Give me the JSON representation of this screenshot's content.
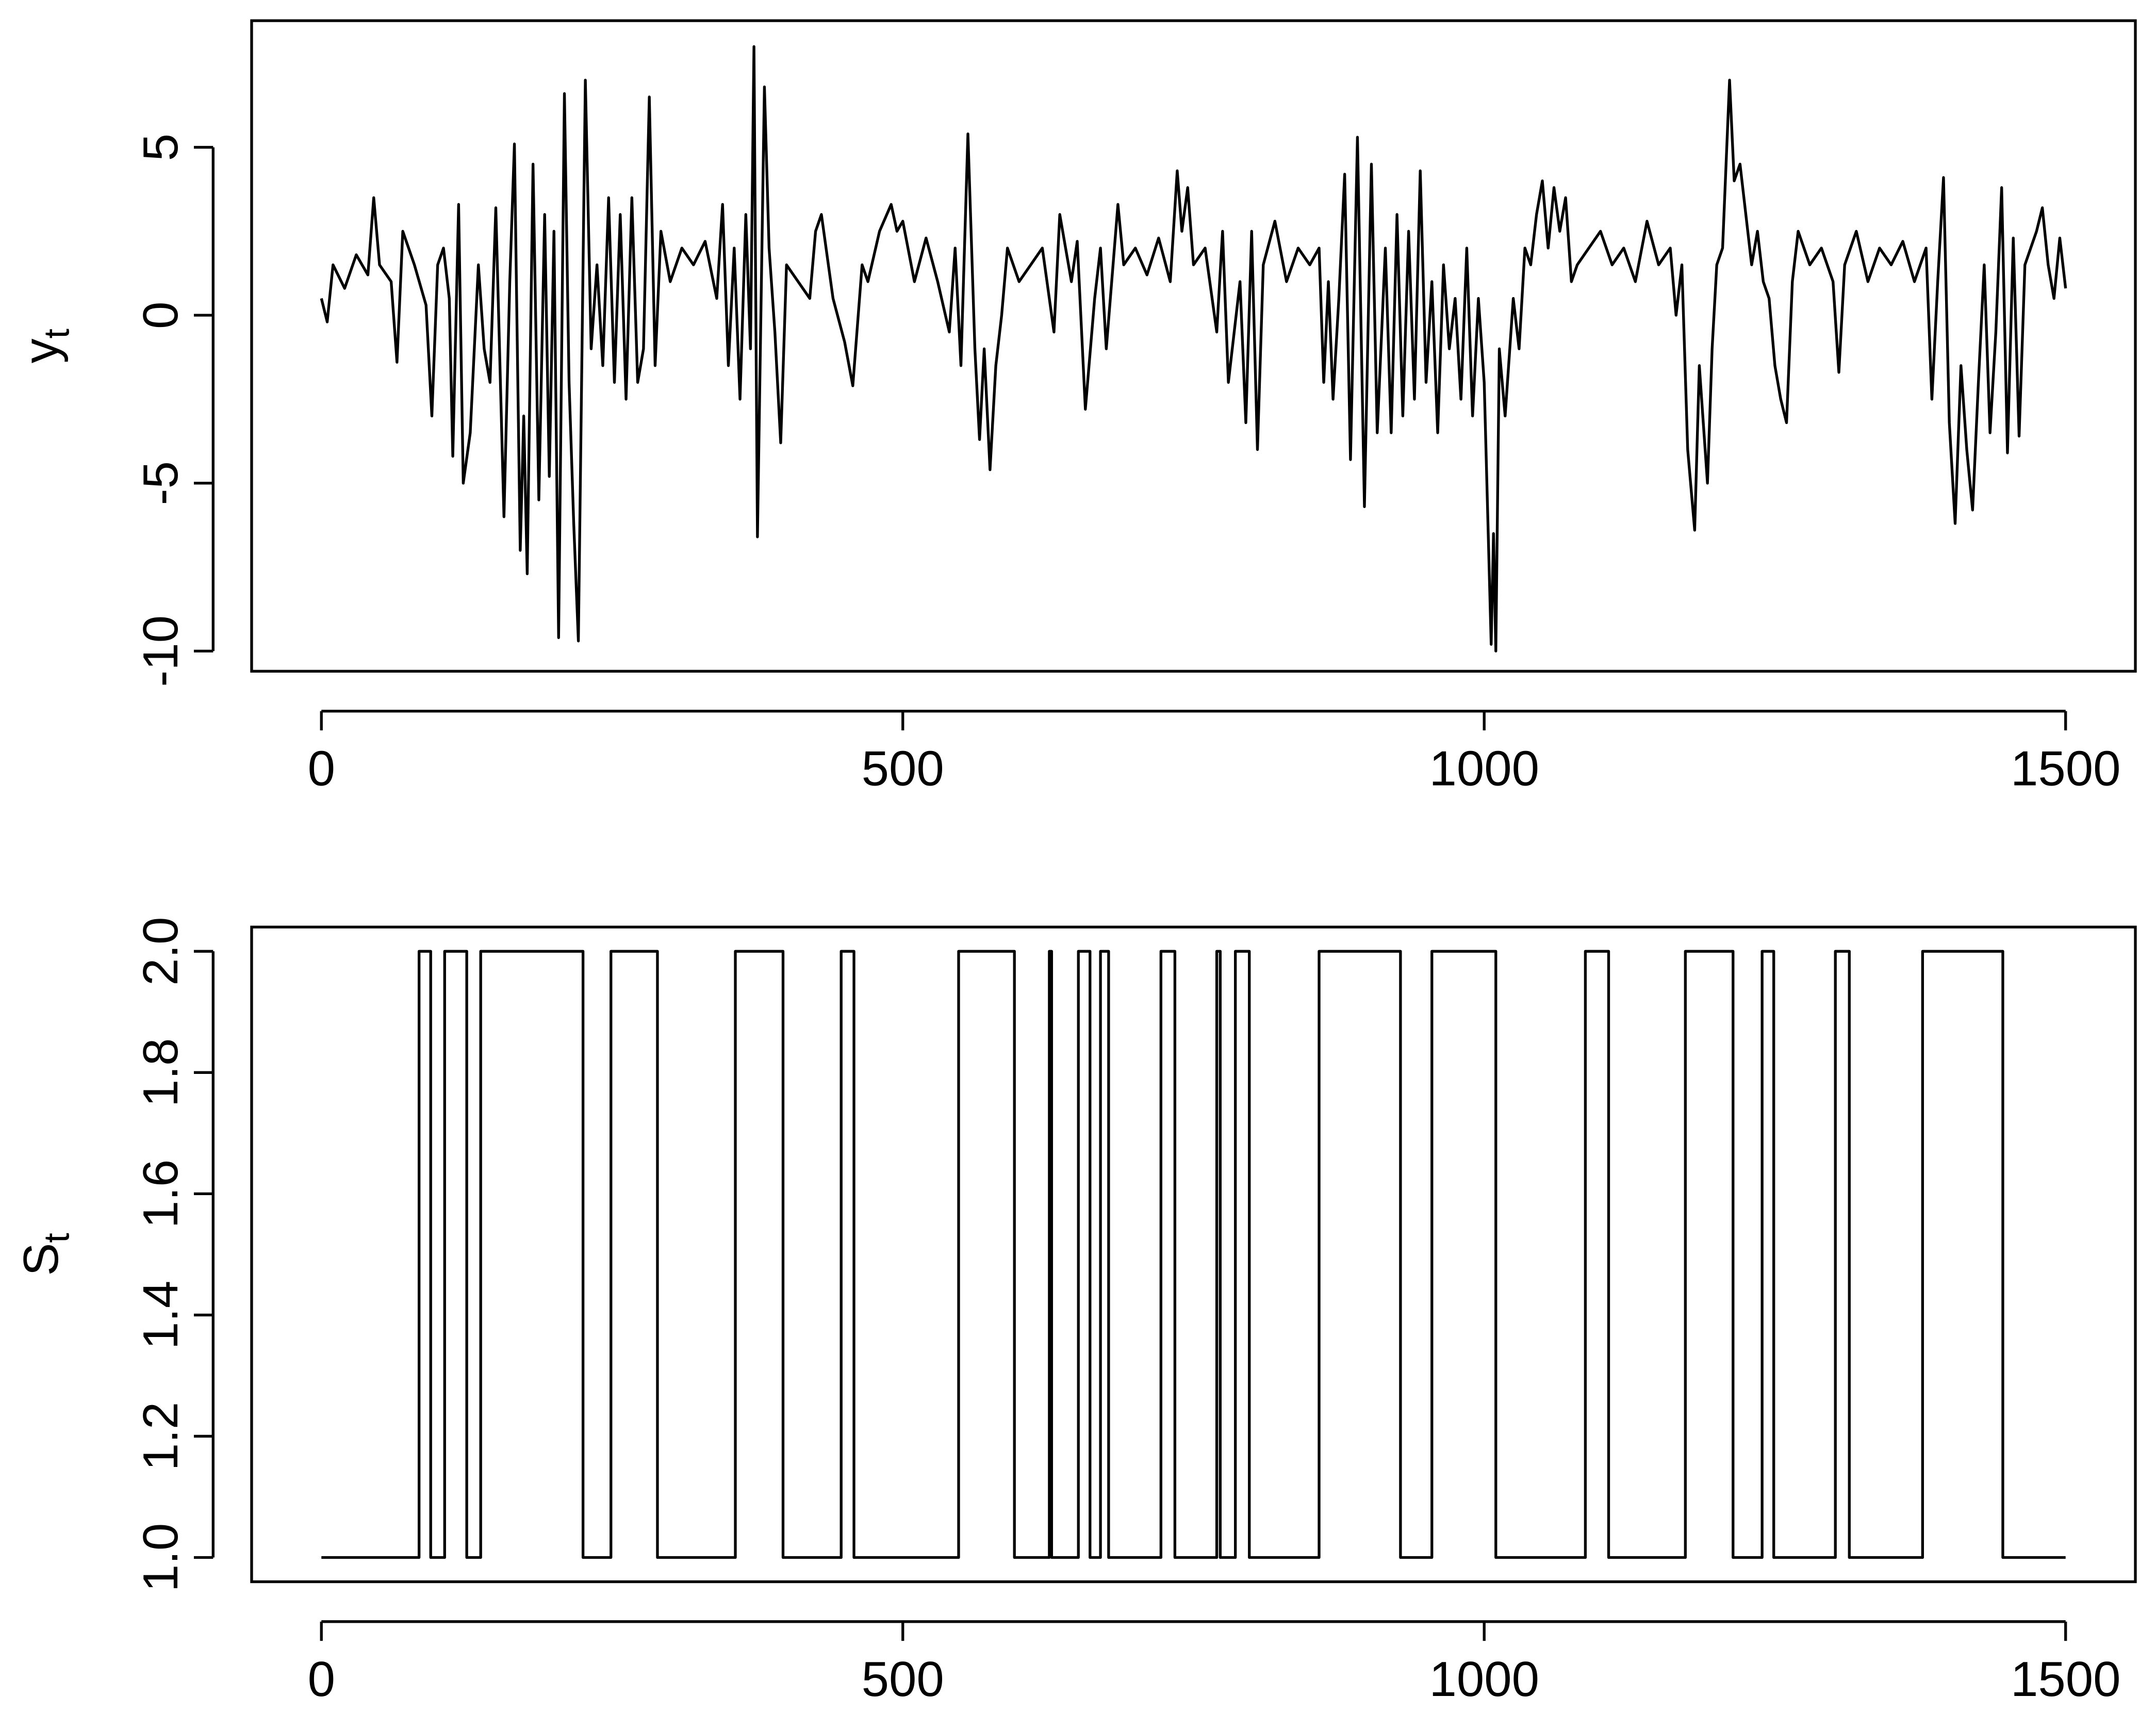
{
  "chart_data": [
    {
      "type": "line",
      "ylabel": {
        "base": "y",
        "sub": "t"
      },
      "color": "#000000",
      "x": [
        0,
        5,
        10,
        20,
        30,
        40,
        45,
        50,
        60,
        65,
        70,
        80,
        90,
        95,
        100,
        105,
        110,
        113,
        118,
        122,
        128,
        135,
        140,
        145,
        150,
        157,
        162,
        166,
        171,
        174,
        177,
        182,
        187,
        192,
        196,
        200,
        204,
        209,
        213,
        217,
        221,
        227,
        232,
        237,
        242,
        247,
        252,
        257,
        262,
        267,
        272,
        277,
        282,
        287,
        292,
        300,
        310,
        320,
        330,
        340,
        345,
        350,
        355,
        360,
        365,
        369,
        372,
        375,
        381,
        385,
        390,
        395,
        400,
        420,
        425,
        430,
        440,
        450,
        457,
        465,
        470,
        480,
        490,
        495,
        500,
        510,
        520,
        530,
        540,
        545,
        550,
        556,
        562,
        566,
        570,
        575,
        580,
        585,
        590,
        600,
        610,
        620,
        630,
        635,
        645,
        650,
        657,
        665,
        670,
        675,
        685,
        690,
        700,
        710,
        720,
        730,
        736,
        740,
        745,
        750,
        760,
        770,
        775,
        780,
        790,
        795,
        800,
        805,
        810,
        820,
        830,
        840,
        850,
        858,
        862,
        866,
        870,
        875,
        880,
        885,
        891,
        897,
        903,
        908,
        915,
        920,
        925,
        930,
        935,
        940,
        945,
        950,
        955,
        960,
        965,
        970,
        975,
        980,
        985,
        990,
        995,
        1000,
        1006,
        1008,
        1010,
        1013,
        1018,
        1025,
        1030,
        1035,
        1040,
        1045,
        1050,
        1055,
        1060,
        1065,
        1070,
        1075,
        1080,
        1090,
        1100,
        1110,
        1120,
        1130,
        1140,
        1150,
        1160,
        1165,
        1170,
        1175,
        1181,
        1185,
        1192,
        1196,
        1200,
        1205,
        1211,
        1215,
        1220,
        1225,
        1230,
        1235,
        1240,
        1245,
        1250,
        1255,
        1260,
        1265,
        1270,
        1280,
        1290,
        1300,
        1305,
        1310,
        1320,
        1330,
        1340,
        1350,
        1360,
        1370,
        1380,
        1385,
        1390,
        1395,
        1400,
        1405,
        1410,
        1415,
        1420,
        1425,
        1430,
        1435,
        1440,
        1445,
        1450,
        1455,
        1460,
        1465,
        1470,
        1475,
        1480,
        1485,
        1490,
        1495,
        1500
      ],
      "values": [
        0.5,
        -0.2,
        1.5,
        0.8,
        1.8,
        1.2,
        3.5,
        1.5,
        1.0,
        -1.4,
        2.5,
        1.5,
        0.3,
        -3.0,
        1.5,
        2.0,
        0.5,
        -4.2,
        3.3,
        -5.0,
        -3.5,
        1.5,
        -1.0,
        -2.0,
        3.2,
        -6.0,
        1.0,
        5.1,
        -7.0,
        -3.0,
        -7.7,
        4.5,
        -5.5,
        3.0,
        -4.8,
        2.5,
        -9.6,
        6.6,
        -2.0,
        -6.2,
        -9.7,
        7.0,
        -1.0,
        1.5,
        -1.5,
        3.5,
        -2.0,
        3.0,
        -2.5,
        3.5,
        -2.0,
        -1.0,
        6.5,
        -1.5,
        2.5,
        1.0,
        2.0,
        1.5,
        2.2,
        0.5,
        3.3,
        -1.5,
        2.0,
        -2.5,
        3.0,
        -1.0,
        8.0,
        -6.6,
        6.8,
        2.0,
        -0.5,
        -3.8,
        1.5,
        0.5,
        2.5,
        3.0,
        0.5,
        -0.8,
        -2.1,
        1.5,
        1.0,
        2.5,
        3.3,
        2.5,
        2.8,
        1.0,
        2.3,
        1.0,
        -0.5,
        2.0,
        -1.5,
        5.4,
        -1.0,
        -3.7,
        -1.0,
        -4.6,
        -1.5,
        0.0,
        2.0,
        1.0,
        1.5,
        2.0,
        -0.5,
        3.0,
        1.0,
        2.2,
        -2.8,
        0.5,
        2.0,
        -1.0,
        3.3,
        1.5,
        2.0,
        1.2,
        2.3,
        1.0,
        4.3,
        2.5,
        3.8,
        1.5,
        2.0,
        -0.5,
        2.5,
        -2.0,
        1.0,
        -3.2,
        2.5,
        -4.0,
        1.5,
        2.8,
        1.0,
        2.0,
        1.5,
        2.0,
        -2.0,
        1.0,
        -2.5,
        0.5,
        4.2,
        -4.3,
        5.3,
        -5.7,
        4.5,
        -3.5,
        2.0,
        -3.5,
        3.0,
        -3.0,
        2.5,
        -2.5,
        4.3,
        -2.0,
        1.0,
        -3.5,
        1.5,
        -1.0,
        0.5,
        -2.5,
        2.0,
        -3.0,
        0.5,
        -2.0,
        -9.8,
        -6.5,
        -10.0,
        -1.0,
        -3.0,
        0.5,
        -1.0,
        2.0,
        1.5,
        3.0,
        4.0,
        2.0,
        3.8,
        2.5,
        3.5,
        1.0,
        1.5,
        2.0,
        2.5,
        1.5,
        2.0,
        1.0,
        2.8,
        1.5,
        2.0,
        0.0,
        1.5,
        -4.0,
        -6.4,
        -1.5,
        -5.0,
        -1.0,
        1.5,
        2.0,
        7.0,
        4.0,
        4.5,
        3.0,
        1.5,
        2.5,
        1.0,
        0.5,
        -1.5,
        -2.5,
        -3.2,
        1.0,
        2.5,
        1.5,
        2.0,
        1.0,
        -1.7,
        1.5,
        2.5,
        1.0,
        2.0,
        1.5,
        2.2,
        1.0,
        2.0,
        -2.5,
        1.0,
        4.1,
        -3.2,
        -6.2,
        -1.5,
        -4.0,
        -5.8,
        -2.0,
        1.5,
        -3.5,
        -0.5,
        3.8,
        -4.1,
        2.3,
        -3.6,
        1.5,
        2.0,
        2.5,
        3.2,
        1.5,
        0.5,
        2.3,
        0.8
      ],
      "xlim": [
        -60,
        1560
      ],
      "xticks": [
        0,
        500,
        1000,
        1500
      ],
      "ylim": [
        -10.6,
        8.77
      ],
      "yticks": [
        -10,
        -5,
        0,
        5
      ]
    },
    {
      "type": "line",
      "step": "post",
      "ylabel": {
        "base": "S",
        "sub": "t"
      },
      "color": "#000000",
      "x": [
        0,
        84,
        94,
        106,
        125,
        137,
        225,
        249,
        289,
        356,
        397,
        447,
        458,
        548,
        596,
        626,
        628,
        651,
        661,
        670,
        677,
        722,
        734,
        770,
        773,
        786,
        798,
        858,
        928,
        955,
        1010,
        1087,
        1107,
        1173,
        1214,
        1239,
        1249,
        1302,
        1314,
        1377,
        1446,
        1500
      ],
      "values": [
        1,
        2,
        1,
        2,
        1,
        2,
        1,
        2,
        1,
        2,
        1,
        2,
        1,
        2,
        1,
        2,
        1,
        2,
        1,
        2,
        1,
        2,
        1,
        2,
        1,
        2,
        1,
        2,
        1,
        2,
        1,
        2,
        1,
        2,
        1,
        2,
        1,
        2,
        1,
        2,
        1,
        1
      ],
      "xlim": [
        -60,
        1560
      ],
      "xticks": [
        0,
        500,
        1000,
        1500
      ],
      "ylim": [
        0.96,
        2.04
      ],
      "yticks": [
        {
          "value": 1,
          "label": "1.0"
        },
        1.2,
        1.4,
        1.6,
        1.8,
        {
          "value": 2,
          "label": "2.0"
        }
      ]
    }
  ]
}
